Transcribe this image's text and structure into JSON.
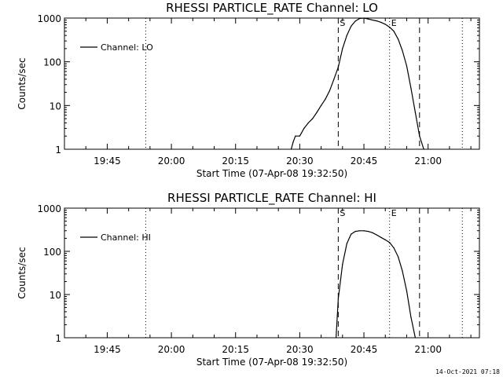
{
  "timestamp": "14-Oct-2021 07:18",
  "chart_data": [
    {
      "type": "line",
      "title": "RHESSI PARTICLE_RATE Channel: LO",
      "xlabel": "Start Time (07-Apr-08 19:32:50)",
      "ylabel": "Counts/sec",
      "yscale": "log",
      "ylim": [
        1,
        1000
      ],
      "yticks": [
        "1",
        "10",
        "100",
        "1000"
      ],
      "xlim": [
        "19:35",
        "21:12"
      ],
      "xticks": [
        "19:45",
        "20:00",
        "20:15",
        "20:30",
        "20:45",
        "21:00"
      ],
      "legend": {
        "placement": "top-left"
      },
      "series": [
        {
          "name": "Channel: LO",
          "x": [
            "20:28",
            "20:28.5",
            "20:29",
            "20:30",
            "20:31",
            "20:32",
            "20:33",
            "20:34",
            "20:35",
            "20:36",
            "20:37",
            "20:38",
            "20:39",
            "20:40",
            "20:41",
            "20:42",
            "20:43",
            "20:44",
            "20:45",
            "20:46",
            "20:47",
            "20:48",
            "20:49",
            "20:50",
            "20:51",
            "20:52",
            "20:53",
            "20:54",
            "20:55",
            "20:56",
            "20:57",
            "20:58",
            "20:59"
          ],
          "values": [
            1,
            1.5,
            2,
            2,
            3,
            4,
            5,
            7,
            10,
            14,
            22,
            40,
            75,
            200,
            400,
            650,
            850,
            980,
            1000,
            950,
            900,
            860,
            800,
            720,
            620,
            500,
            330,
            180,
            80,
            25,
            7,
            2,
            1
          ]
        }
      ],
      "markers": [
        {
          "label": "S",
          "time": "20:39",
          "style": "dashed"
        },
        {
          "label": "E",
          "time": "20:51",
          "style": "dotted"
        },
        {
          "time": "20:58",
          "style": "dashed"
        },
        {
          "time": "19:54",
          "style": "dotted"
        },
        {
          "time": "21:08",
          "style": "dotted"
        }
      ]
    },
    {
      "type": "line",
      "title": "RHESSI PARTICLE_RATE Channel: HI",
      "xlabel": "Start Time (07-Apr-08 19:32:50)",
      "ylabel": "Counts/sec",
      "yscale": "log",
      "ylim": [
        1,
        1000
      ],
      "yticks": [
        "1",
        "10",
        "100",
        "1000"
      ],
      "xlim": [
        "19:35",
        "21:12"
      ],
      "xticks": [
        "19:45",
        "20:00",
        "20:15",
        "20:30",
        "20:45",
        "21:00"
      ],
      "legend": {
        "placement": "top-left"
      },
      "series": [
        {
          "name": "Channel: HI",
          "x": [
            "20:38.5",
            "20:39",
            "20:40",
            "20:41",
            "20:42",
            "20:43",
            "20:44",
            "20:45",
            "20:46",
            "20:47",
            "20:48",
            "20:49",
            "20:50",
            "20:51",
            "20:52",
            "20:53",
            "20:54",
            "20:55",
            "20:56",
            "20:57"
          ],
          "values": [
            1,
            8,
            50,
            150,
            250,
            290,
            300,
            300,
            290,
            270,
            240,
            210,
            185,
            160,
            120,
            75,
            35,
            12,
            3,
            1
          ]
        }
      ],
      "markers": [
        {
          "label": "S",
          "time": "20:39",
          "style": "dashed"
        },
        {
          "label": "E",
          "time": "20:51",
          "style": "dotted"
        },
        {
          "time": "20:58",
          "style": "dashed"
        },
        {
          "time": "19:54",
          "style": "dotted"
        },
        {
          "time": "21:08",
          "style": "dotted"
        }
      ]
    }
  ]
}
